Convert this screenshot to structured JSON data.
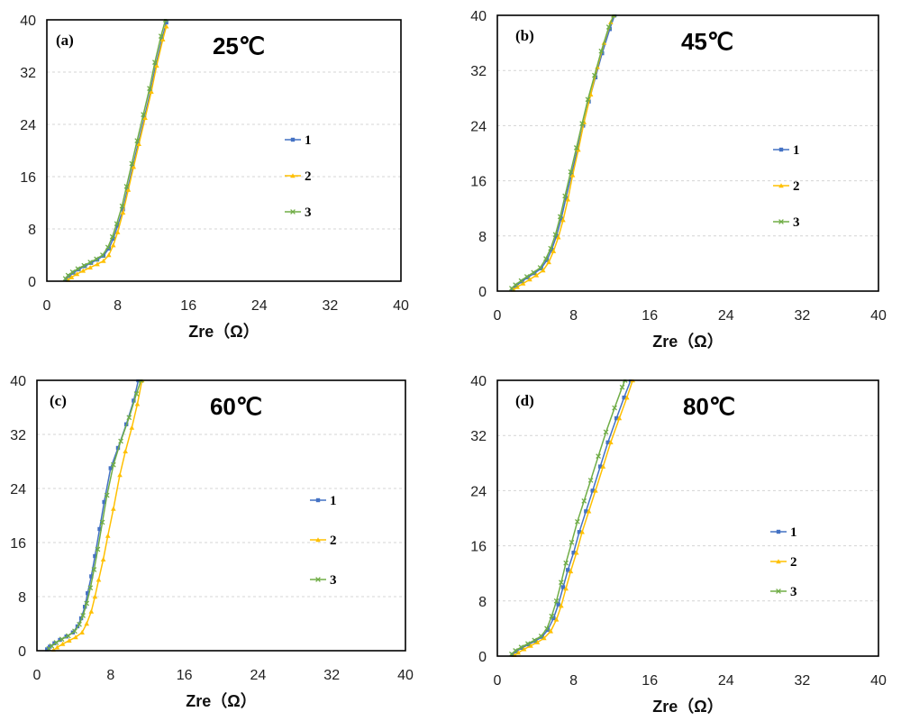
{
  "colors": {
    "1": "#4472C4",
    "2": "#FFC000",
    "3": "#70AD47"
  },
  "chart_data": [
    {
      "type": "line",
      "panel_label": "(a)",
      "title": "25℃",
      "xlabel": "Zre（Ω）",
      "xlim": [
        0,
        40
      ],
      "ylim": [
        0,
        40
      ],
      "xticks": [
        "0",
        "8",
        "16",
        "24",
        "32",
        "40"
      ],
      "yticks": [
        "0",
        "8",
        "16",
        "24",
        "32",
        "40"
      ],
      "grid": "horizontal-dashed",
      "legend_position": "right",
      "series": [
        {
          "name": "1",
          "marker": "square",
          "points": [
            [
              2.2,
              0.3
            ],
            [
              2.5,
              0.8
            ],
            [
              3.0,
              1.3
            ],
            [
              3.6,
              1.8
            ],
            [
              4.3,
              2.3
            ],
            [
              5.0,
              2.8
            ],
            [
              5.7,
              3.3
            ],
            [
              6.4,
              3.9
            ],
            [
              7.0,
              5.0
            ],
            [
              7.5,
              6.5
            ],
            [
              8.0,
              8.5
            ],
            [
              8.6,
              11.0
            ],
            [
              9.1,
              14.0
            ],
            [
              9.7,
              17.5
            ],
            [
              10.3,
              21.0
            ],
            [
              11.0,
              25.0
            ],
            [
              11.7,
              29.0
            ],
            [
              12.3,
              33.0
            ],
            [
              13.0,
              37.0
            ],
            [
              13.5,
              39.6
            ]
          ]
        },
        {
          "name": "2",
          "marker": "triangle",
          "points": [
            [
              2.4,
              0.2
            ],
            [
              2.8,
              0.6
            ],
            [
              3.4,
              1.1
            ],
            [
              4.1,
              1.6
            ],
            [
              4.9,
              2.1
            ],
            [
              5.7,
              2.6
            ],
            [
              6.4,
              3.1
            ],
            [
              7.0,
              4.0
            ],
            [
              7.5,
              5.5
            ],
            [
              8.0,
              7.5
            ],
            [
              8.6,
              10.5
            ],
            [
              9.2,
              14.0
            ],
            [
              9.8,
              17.5
            ],
            [
              10.4,
              21.0
            ],
            [
              11.1,
              25.0
            ],
            [
              11.8,
              29.0
            ],
            [
              12.4,
              33.0
            ],
            [
              13.1,
              37.0
            ],
            [
              13.5,
              39.0
            ]
          ]
        },
        {
          "name": "3",
          "marker": "cross",
          "points": [
            [
              2.1,
              0.4
            ],
            [
              2.4,
              0.9
            ],
            [
              2.9,
              1.4
            ],
            [
              3.5,
              1.9
            ],
            [
              4.2,
              2.4
            ],
            [
              4.9,
              2.9
            ],
            [
              5.6,
              3.4
            ],
            [
              6.3,
              4.0
            ],
            [
              6.9,
              5.2
            ],
            [
              7.4,
              6.8
            ],
            [
              7.9,
              8.8
            ],
            [
              8.5,
              11.5
            ],
            [
              9.0,
              14.5
            ],
            [
              9.6,
              18.0
            ],
            [
              10.2,
              21.5
            ],
            [
              10.9,
              25.5
            ],
            [
              11.6,
              29.5
            ],
            [
              12.2,
              33.5
            ],
            [
              12.9,
              37.5
            ],
            [
              13.4,
              40.0
            ]
          ]
        }
      ]
    },
    {
      "type": "line",
      "panel_label": "(b)",
      "title": "45℃",
      "xlabel": "Zre（Ω）",
      "xlim": [
        0,
        40
      ],
      "ylim": [
        0,
        40
      ],
      "xticks": [
        "0",
        "8",
        "16",
        "24",
        "32",
        "40"
      ],
      "yticks": [
        "0",
        "8",
        "16",
        "24",
        "32",
        "40"
      ],
      "grid": "horizontal-dashed",
      "legend_position": "right",
      "series": [
        {
          "name": "1",
          "marker": "square",
          "points": [
            [
              1.6,
              0.3
            ],
            [
              2.0,
              0.8
            ],
            [
              2.6,
              1.4
            ],
            [
              3.2,
              2.0
            ],
            [
              3.9,
              2.6
            ],
            [
              4.6,
              3.3
            ],
            [
              5.2,
              4.5
            ],
            [
              5.7,
              6.0
            ],
            [
              6.2,
              8.0
            ],
            [
              6.7,
              10.5
            ],
            [
              7.2,
              13.5
            ],
            [
              7.8,
              17.0
            ],
            [
              8.4,
              20.5
            ],
            [
              9.0,
              24.0
            ],
            [
              9.6,
              27.5
            ],
            [
              10.3,
              31.0
            ],
            [
              11.0,
              34.5
            ],
            [
              11.8,
              38.0
            ],
            [
              12.3,
              40.0
            ]
          ]
        },
        {
          "name": "2",
          "marker": "triangle",
          "points": [
            [
              1.7,
              0.2
            ],
            [
              2.1,
              0.6
            ],
            [
              2.7,
              1.1
            ],
            [
              3.4,
              1.7
            ],
            [
              4.1,
              2.3
            ],
            [
              4.8,
              3.0
            ],
            [
              5.4,
              4.2
            ],
            [
              5.9,
              5.8
            ],
            [
              6.4,
              7.8
            ],
            [
              6.9,
              10.3
            ],
            [
              7.4,
              13.3
            ],
            [
              7.9,
              16.8
            ],
            [
              8.5,
              20.5
            ],
            [
              9.1,
              24.5
            ],
            [
              9.8,
              28.5
            ],
            [
              10.5,
              32.5
            ],
            [
              11.2,
              36.0
            ],
            [
              11.9,
              39.0
            ],
            [
              12.2,
              40.0
            ]
          ]
        },
        {
          "name": "3",
          "marker": "cross",
          "points": [
            [
              1.5,
              0.4
            ],
            [
              1.9,
              0.9
            ],
            [
              2.5,
              1.5
            ],
            [
              3.1,
              2.1
            ],
            [
              3.8,
              2.7
            ],
            [
              4.5,
              3.4
            ],
            [
              5.1,
              4.7
            ],
            [
              5.6,
              6.2
            ],
            [
              6.1,
              8.2
            ],
            [
              6.6,
              10.8
            ],
            [
              7.1,
              13.8
            ],
            [
              7.7,
              17.3
            ],
            [
              8.3,
              20.8
            ],
            [
              8.9,
              24.3
            ],
            [
              9.5,
              27.8
            ],
            [
              10.2,
              31.3
            ],
            [
              10.9,
              34.8
            ],
            [
              11.7,
              38.3
            ],
            [
              12.2,
              40.0
            ]
          ]
        }
      ]
    },
    {
      "type": "line",
      "panel_label": "(c)",
      "title": "60℃",
      "xlabel": "Zre（Ω）",
      "xlim": [
        0,
        40
      ],
      "ylim": [
        0,
        40
      ],
      "xticks": [
        "0",
        "8",
        "16",
        "24",
        "32",
        "40"
      ],
      "yticks": [
        "0",
        "8",
        "16",
        "24",
        "32",
        "40"
      ],
      "grid": "horizontal-dashed",
      "legend_position": "right",
      "series": [
        {
          "name": "1",
          "marker": "square",
          "points": [
            [
              1.1,
              0.2
            ],
            [
              1.4,
              0.6
            ],
            [
              1.9,
              1.1
            ],
            [
              2.5,
              1.6
            ],
            [
              3.2,
              2.1
            ],
            [
              3.9,
              2.7
            ],
            [
              4.4,
              3.6
            ],
            [
              4.8,
              4.8
            ],
            [
              5.2,
              6.5
            ],
            [
              5.5,
              8.5
            ],
            [
              5.9,
              11.0
            ],
            [
              6.3,
              14.0
            ],
            [
              6.8,
              18.0
            ],
            [
              7.3,
              22.0
            ],
            [
              8.0,
              27.0
            ],
            [
              8.8,
              30.0
            ],
            [
              9.7,
              33.5
            ],
            [
              10.5,
              37.0
            ],
            [
              11.0,
              40.0
            ]
          ]
        },
        {
          "name": "2",
          "marker": "triangle",
          "points": [
            [
              1.8,
              0.1
            ],
            [
              2.2,
              0.5
            ],
            [
              2.8,
              1.0
            ],
            [
              3.5,
              1.5
            ],
            [
              4.2,
              2.0
            ],
            [
              4.9,
              2.7
            ],
            [
              5.4,
              4.0
            ],
            [
              5.9,
              5.8
            ],
            [
              6.3,
              8.0
            ],
            [
              6.7,
              10.5
            ],
            [
              7.2,
              13.5
            ],
            [
              7.7,
              17.0
            ],
            [
              8.3,
              21.0
            ],
            [
              9.0,
              26.0
            ],
            [
              9.6,
              29.5
            ],
            [
              10.3,
              33.0
            ],
            [
              10.9,
              36.5
            ],
            [
              11.4,
              40.0
            ]
          ]
        },
        {
          "name": "3",
          "marker": "cross",
          "points": [
            [
              1.3,
              0.3
            ],
            [
              1.6,
              0.7
            ],
            [
              2.1,
              1.2
            ],
            [
              2.7,
              1.7
            ],
            [
              3.4,
              2.2
            ],
            [
              4.1,
              2.9
            ],
            [
              4.6,
              3.9
            ],
            [
              5.0,
              5.2
            ],
            [
              5.4,
              7.0
            ],
            [
              5.8,
              9.3
            ],
            [
              6.2,
              12.0
            ],
            [
              6.6,
              15.0
            ],
            [
              7.1,
              19.0
            ],
            [
              7.6,
              23.0
            ],
            [
              8.3,
              27.5
            ],
            [
              9.1,
              31.0
            ],
            [
              10.0,
              34.5
            ],
            [
              10.8,
              38.0
            ],
            [
              11.3,
              40.0
            ]
          ]
        }
      ]
    },
    {
      "type": "line",
      "panel_label": "(d)",
      "title": "80℃",
      "xlabel": "Zre（Ω）",
      "xlim": [
        0,
        40
      ],
      "ylim": [
        0,
        40
      ],
      "xticks": [
        "0",
        "8",
        "16",
        "24",
        "32",
        "40"
      ],
      "yticks": [
        "0",
        "8",
        "16",
        "24",
        "32",
        "40"
      ],
      "grid": "horizontal-dashed",
      "legend_position": "right",
      "series": [
        {
          "name": "1",
          "marker": "square",
          "points": [
            [
              1.6,
              0.2
            ],
            [
              2.0,
              0.7
            ],
            [
              2.6,
              1.2
            ],
            [
              3.3,
              1.7
            ],
            [
              4.0,
              2.2
            ],
            [
              4.7,
              2.8
            ],
            [
              5.3,
              3.8
            ],
            [
              5.9,
              5.5
            ],
            [
              6.4,
              7.5
            ],
            [
              6.9,
              10.0
            ],
            [
              7.4,
              12.5
            ],
            [
              8.0,
              15.0
            ],
            [
              8.6,
              18.0
            ],
            [
              9.3,
              21.0
            ],
            [
              10.0,
              24.0
            ],
            [
              10.8,
              27.5
            ],
            [
              11.6,
              31.0
            ],
            [
              12.5,
              34.5
            ],
            [
              13.3,
              37.5
            ],
            [
              14.0,
              40.0
            ]
          ]
        },
        {
          "name": "2",
          "marker": "triangle",
          "points": [
            [
              1.8,
              0.1
            ],
            [
              2.2,
              0.5
            ],
            [
              2.8,
              1.0
            ],
            [
              3.5,
              1.5
            ],
            [
              4.2,
              2.0
            ],
            [
              4.9,
              2.6
            ],
            [
              5.6,
              3.6
            ],
            [
              6.2,
              5.3
            ],
            [
              6.7,
              7.3
            ],
            [
              7.2,
              9.8
            ],
            [
              7.7,
              12.3
            ],
            [
              8.3,
              15.0
            ],
            [
              8.9,
              18.0
            ],
            [
              9.6,
              21.0
            ],
            [
              10.3,
              24.0
            ],
            [
              11.1,
              27.5
            ],
            [
              11.9,
              31.0
            ],
            [
              12.8,
              34.5
            ],
            [
              13.6,
              37.5
            ],
            [
              14.2,
              40.0
            ]
          ]
        },
        {
          "name": "3",
          "marker": "cross",
          "points": [
            [
              1.5,
              0.3
            ],
            [
              1.9,
              0.8
            ],
            [
              2.5,
              1.3
            ],
            [
              3.2,
              1.8
            ],
            [
              3.9,
              2.3
            ],
            [
              4.6,
              2.9
            ],
            [
              5.2,
              4.0
            ],
            [
              5.7,
              5.8
            ],
            [
              6.2,
              8.0
            ],
            [
              6.7,
              10.7
            ],
            [
              7.2,
              13.5
            ],
            [
              7.8,
              16.5
            ],
            [
              8.4,
              19.5
            ],
            [
              9.1,
              22.5
            ],
            [
              9.8,
              25.5
            ],
            [
              10.6,
              29.0
            ],
            [
              11.4,
              32.5
            ],
            [
              12.3,
              36.0
            ],
            [
              13.1,
              39.0
            ],
            [
              13.4,
              40.0
            ]
          ]
        }
      ]
    }
  ]
}
